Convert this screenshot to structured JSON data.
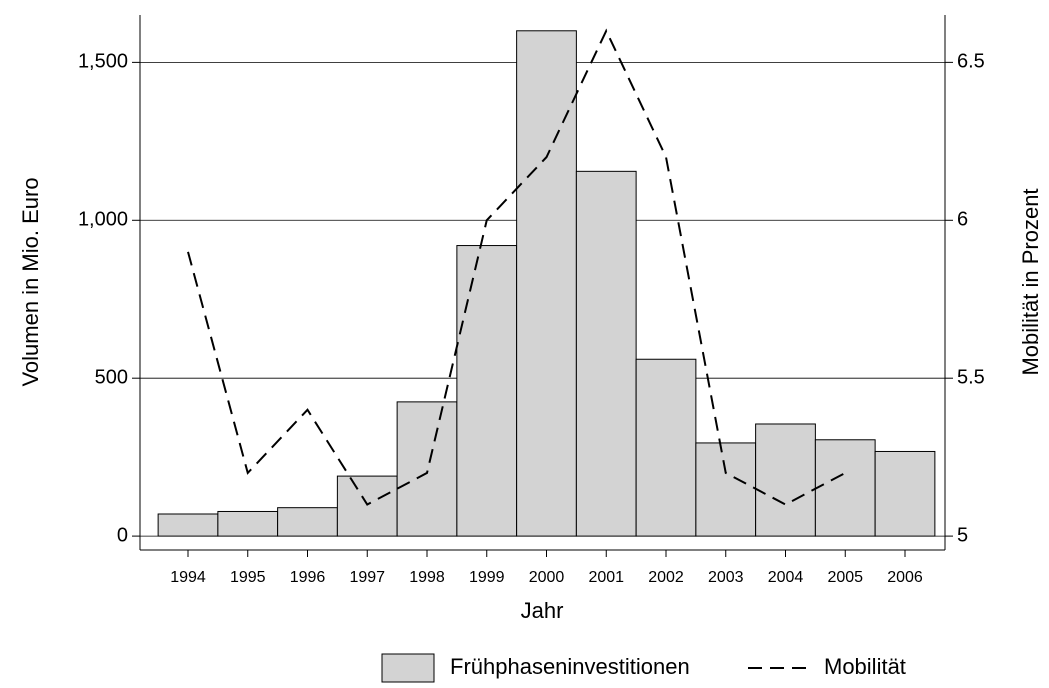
{
  "chart_data": {
    "type": "bar+line",
    "categories": [
      "1994",
      "1995",
      "1996",
      "1997",
      "1998",
      "1999",
      "2000",
      "2001",
      "2002",
      "2003",
      "2004",
      "2005",
      "2006"
    ],
    "series": [
      {
        "name": "Frühphaseninvestitionen",
        "type": "bar",
        "color": "#d3d3d3",
        "values": [
          70,
          78,
          90,
          190,
          425,
          920,
          1600,
          1155,
          560,
          295,
          355,
          305,
          268
        ]
      },
      {
        "name": "Mobilität",
        "type": "line",
        "axis": "y2",
        "color": "#000000",
        "values": [
          5.9,
          5.2,
          5.4,
          5.1,
          5.2,
          6.0,
          6.2,
          6.6,
          6.2,
          5.2,
          5.1,
          5.2,
          null
        ]
      }
    ],
    "ylabel": "Volumen in Mio. Euro",
    "y2label": "Mobilität in Prozent",
    "xlabel": "Jahr",
    "ylim": [
      -44,
      1650
    ],
    "yticks": [
      0,
      500,
      {
        "value": 1000,
        "label": "1,000"
      },
      {
        "value": 1500,
        "label": "1,500"
      }
    ],
    "y2lim": [
      4.956,
      6.65
    ],
    "y2ticks": [
      5,
      5.5,
      6,
      6.5
    ],
    "grid": true,
    "legend": "bottom"
  }
}
